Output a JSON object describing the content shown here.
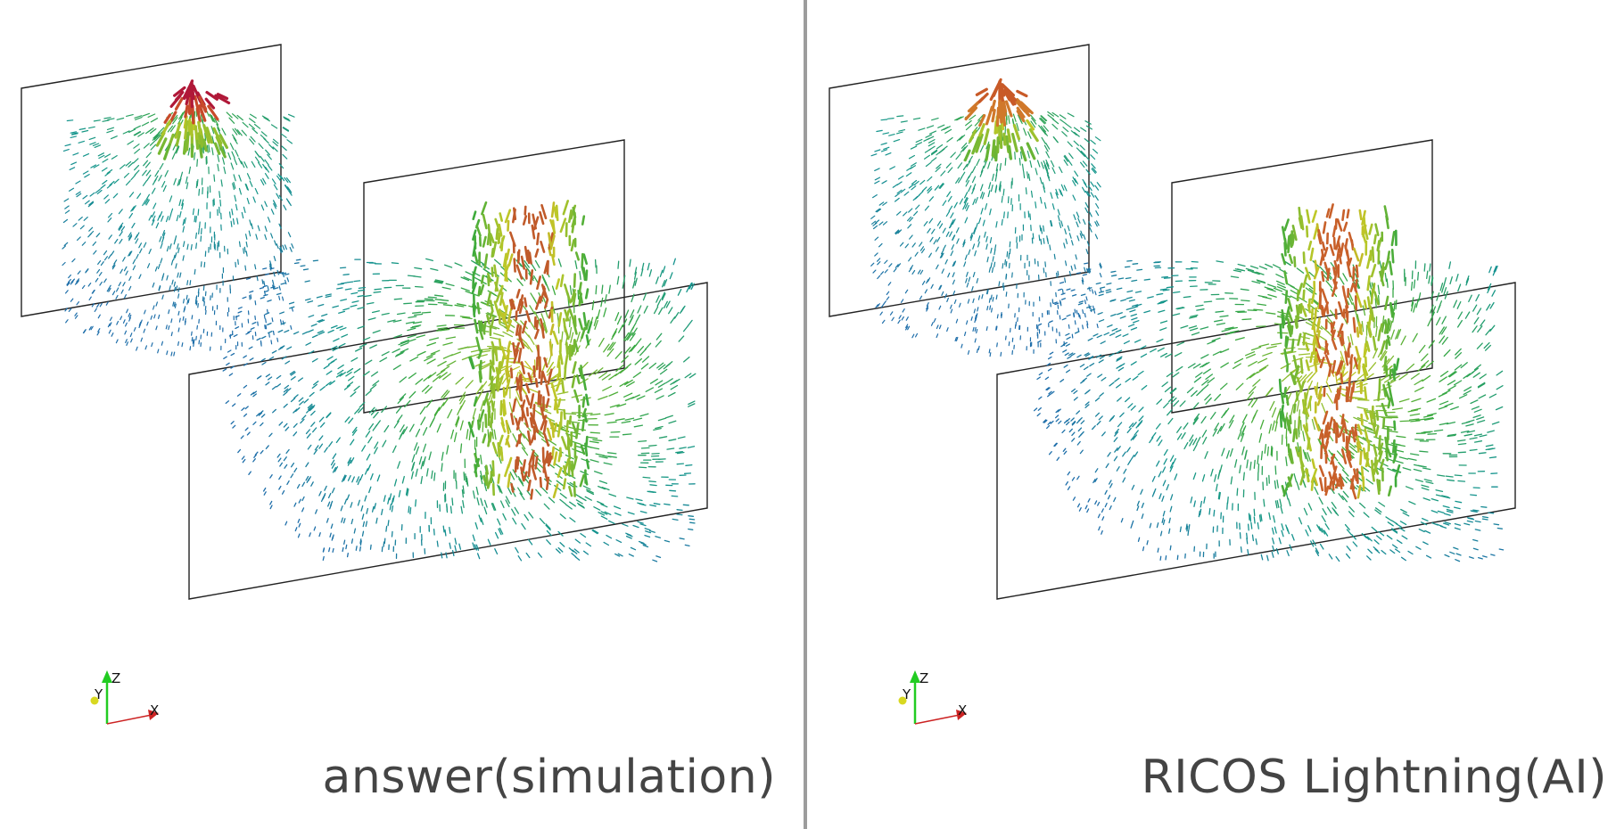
{
  "panels": [
    {
      "caption": "answer(simulation)",
      "axes": {
        "z": "Z",
        "y": "Y",
        "x": "X"
      },
      "colors": {
        "source_top": "#b01838",
        "source_mid": "#c84a2a",
        "pillar": "#c05a2a"
      }
    },
    {
      "caption": "RICOS Lightning(AI)",
      "axes": {
        "z": "Z",
        "y": "Y",
        "x": "X"
      },
      "colors": {
        "source_top": "#c85a28",
        "source_mid": "#d0782a",
        "pillar": "#c8602a"
      }
    }
  ],
  "divider_color": "#9c9c9c"
}
